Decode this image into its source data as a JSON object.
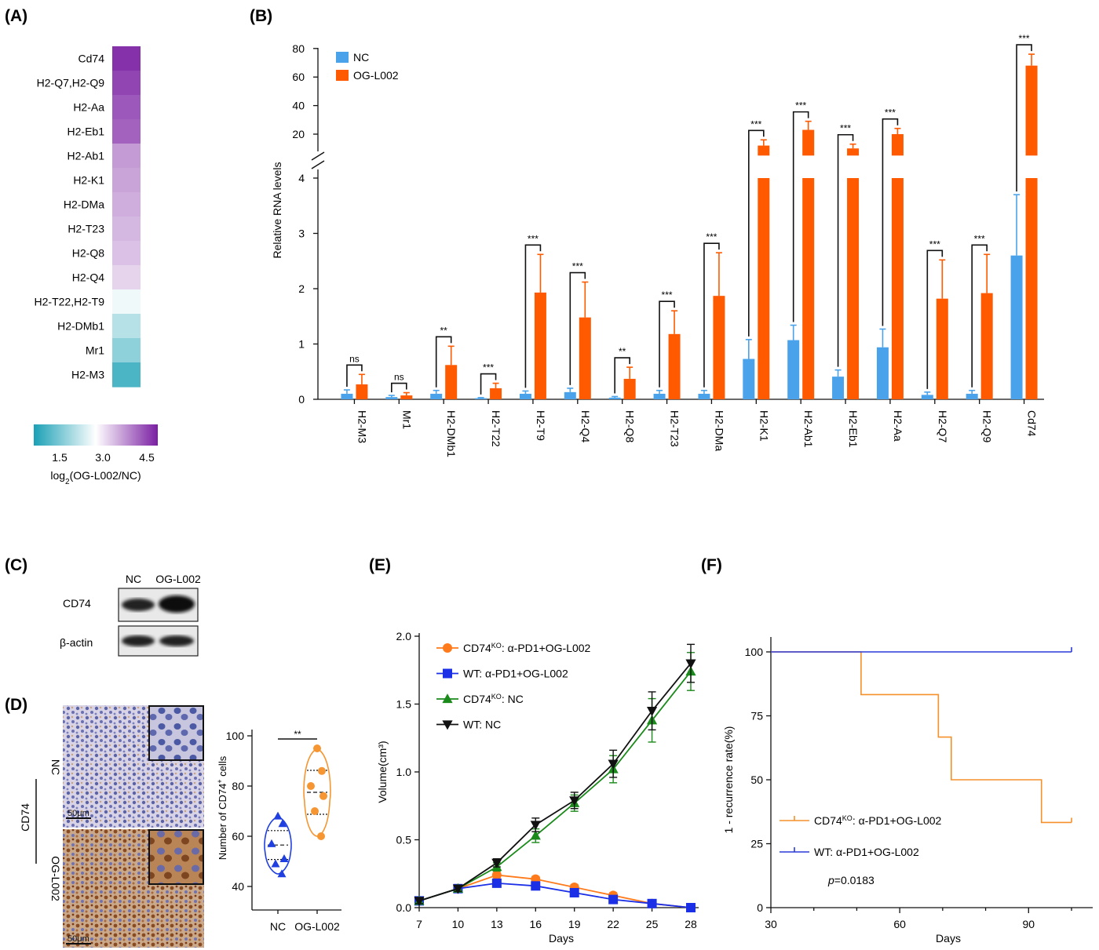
{
  "panels": {
    "A": "(A)",
    "B": "(B)",
    "C": "(C)",
    "D": "(D)",
    "E": "(E)",
    "F": "(F)"
  },
  "chart_data": [
    {
      "id": "A",
      "type": "heatmap",
      "rows": [
        "Cd74",
        "H2-Q7,H2-Q9",
        "H2-Aa",
        "H2-Eb1",
        "H2-Ab1",
        "H2-K1",
        "H2-DMa",
        "H2-T23",
        "H2-Q8",
        "H2-Q4",
        "H2-T22,H2-T9",
        "H2-DMb1",
        "Mr1",
        "H2-M3"
      ],
      "values": [
        5.0,
        4.8,
        4.6,
        4.5,
        3.9,
        3.8,
        3.7,
        3.6,
        3.5,
        3.3,
        2.7,
        2.1,
        1.7,
        1.0
      ],
      "colorbar": {
        "ticks": [
          "1.5",
          "3.0",
          "4.5"
        ],
        "range": [
          0.5,
          5.2
        ],
        "low_color": "#1aa0b5",
        "mid_color": "#ffffff",
        "high_color": "#7a1fa2"
      },
      "xlabel_pre": "log",
      "xlabel_sub": "2",
      "xlabel_post": "(OG-L002/NC)"
    },
    {
      "id": "B",
      "type": "bar",
      "ylabel": "Relative RNA levels",
      "legend": [
        "NC",
        "OG-L002"
      ],
      "colors": {
        "NC": "#4aa3ea",
        "OG-L002": "#ff5a00"
      },
      "categories": [
        "H2-M3",
        "Mr1",
        "H2-DMb1",
        "H2-T22",
        "H2-T9",
        "H2-Q4",
        "H2-Q8",
        "H2-T23",
        "H2-DMa",
        "H2-K1",
        "H2-Ab1",
        "H2-Eb1",
        "H2-Aa",
        "H2-Q7",
        "H2-Q9",
        "Cd74"
      ],
      "series": [
        {
          "name": "NC",
          "values": [
            0.1,
            0.04,
            0.1,
            0.02,
            0.1,
            0.13,
            0.03,
            0.1,
            0.1,
            0.73,
            1.07,
            0.41,
            0.94,
            0.08,
            0.1,
            2.6
          ],
          "errors": [
            0.07,
            0.03,
            0.06,
            0.01,
            0.05,
            0.07,
            0.02,
            0.06,
            0.06,
            0.35,
            0.27,
            0.12,
            0.33,
            0.05,
            0.06,
            1.1
          ]
        },
        {
          "name": "OG-L002",
          "values": [
            0.27,
            0.07,
            0.62,
            0.2,
            1.93,
            1.48,
            0.37,
            1.18,
            1.87,
            12,
            23,
            10,
            20,
            1.82,
            1.92,
            68
          ],
          "errors": [
            0.18,
            0.05,
            0.34,
            0.09,
            0.69,
            0.64,
            0.21,
            0.42,
            0.78,
            4,
            6,
            3,
            4,
            0.7,
            0.7,
            8
          ]
        }
      ],
      "significance": [
        "ns",
        "ns",
        "**",
        "***",
        "***",
        "***",
        "**",
        "***",
        "***",
        "***",
        "***",
        "***",
        "***",
        "***",
        "***",
        "***"
      ],
      "y_lower_ticks": [
        "0",
        "1",
        "2",
        "3",
        "4"
      ],
      "y_upper_ticks": [
        "20",
        "40",
        "60",
        "80"
      ],
      "axis_break": [
        4,
        10
      ]
    },
    {
      "id": "D",
      "type": "scatter",
      "ylabel_pre": "Number of CD74",
      "ylabel_sup": "+",
      "ylabel_post": " cells",
      "categories": [
        "NC",
        "OG-L002"
      ],
      "yticks": [
        "40",
        "60",
        "80",
        "100"
      ],
      "ylim": [
        40,
        100
      ],
      "series": [
        {
          "name": "NC",
          "values": [
            68,
            65,
            57,
            51,
            49,
            45
          ],
          "color": "#1f3fe0",
          "marker": "triangle"
        },
        {
          "name": "OG-L002",
          "values": [
            95,
            86,
            80,
            76,
            70,
            60
          ],
          "color": "#f59632",
          "marker": "circle"
        }
      ],
      "significance": "**"
    },
    {
      "id": "E",
      "type": "line",
      "ylabel": "Volume(cm³)",
      "xlabel": "Days",
      "x": [
        7,
        10,
        13,
        16,
        19,
        22,
        25,
        28
      ],
      "xticks": [
        "7",
        "10",
        "13",
        "16",
        "19",
        "22",
        "25",
        "28"
      ],
      "yticks": [
        "0.0",
        "0.5",
        "1.0",
        "1.5",
        "2.0"
      ],
      "ylim": [
        0,
        2.0
      ],
      "series": [
        {
          "name_pre": "CD74",
          "name_sup": "KO",
          "name_post": ": α-PD1+OG-L002",
          "color": "#ff7a1a",
          "marker": "circle",
          "values": [
            0.05,
            0.14,
            0.24,
            0.21,
            0.15,
            0.09,
            0.03,
            0.0
          ],
          "errors": [
            0.02,
            0.02,
            0.02,
            0.02,
            0.02,
            0.02,
            0.02,
            0.02
          ]
        },
        {
          "name_pre": "WT: α-PD1+OG-L002",
          "name_sup": "",
          "name_post": "",
          "color": "#1a2fe6",
          "marker": "square",
          "values": [
            0.05,
            0.14,
            0.18,
            0.16,
            0.11,
            0.06,
            0.03,
            0.0
          ],
          "errors": [
            0.02,
            0.02,
            0.02,
            0.02,
            0.02,
            0.02,
            0.02,
            0.02
          ]
        },
        {
          "name_pre": "CD74",
          "name_sup": "KO",
          "name_post": ": NC",
          "color": "#1a8a1a",
          "marker": "triangle",
          "values": [
            0.05,
            0.14,
            0.3,
            0.53,
            0.77,
            1.02,
            1.38,
            1.74
          ],
          "errors": [
            0.02,
            0.02,
            0.03,
            0.05,
            0.06,
            0.1,
            0.16,
            0.14
          ]
        },
        {
          "name_pre": "WT: NC",
          "name_sup": "",
          "name_post": "",
          "color": "#111111",
          "marker": "invtriangle",
          "values": [
            0.05,
            0.14,
            0.33,
            0.61,
            0.79,
            1.06,
            1.45,
            1.8
          ],
          "errors": [
            0.02,
            0.02,
            0.03,
            0.05,
            0.06,
            0.1,
            0.14,
            0.14
          ]
        }
      ]
    },
    {
      "id": "F",
      "type": "line",
      "ylabel": "1 - recurrence rate(%)",
      "xlabel": "Days",
      "xticks": [
        "30",
        "60",
        "90"
      ],
      "yticks": [
        "0",
        "25",
        "50",
        "75",
        "100"
      ],
      "xlim": [
        30,
        100
      ],
      "ylim": [
        0,
        100
      ],
      "series": [
        {
          "name_pre": "CD74",
          "name_sup": "KO",
          "name_post": ": α-PD1+OG-L002",
          "color": "#f5902a",
          "x": [
            30,
            51,
            69,
            72,
            93,
            100
          ],
          "values": [
            100,
            83.3,
            66.7,
            50,
            33.3,
            33.3
          ]
        },
        {
          "name_pre": "WT: α-PD1+OG-L002",
          "name_sup": "",
          "name_post": "",
          "color": "#2a3ad8",
          "x": [
            30,
            100
          ],
          "values": [
            100,
            100
          ]
        }
      ],
      "pvalue_label": "p",
      "pvalue_text": "=0.0183"
    }
  ],
  "blot": {
    "columns": [
      "NC",
      "OG-L002"
    ],
    "rows": [
      "CD74",
      "β-actin"
    ]
  },
  "ihc": {
    "group_label": "CD74",
    "rows": [
      "NC",
      "OG-L002"
    ],
    "scale_bar": "50μm"
  }
}
